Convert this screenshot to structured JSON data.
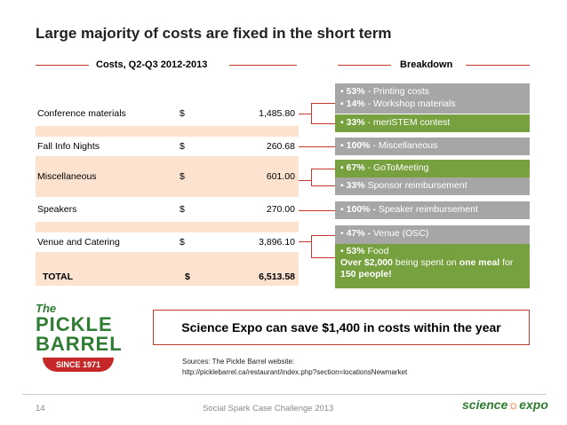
{
  "title": "Large majority of costs are fixed in the short term",
  "costs_header": "Costs, Q2-Q3 2012-2013",
  "breakdown_header": "Breakdown",
  "table": [
    {
      "item": "Conference materials",
      "currency": "$",
      "amount": "1,485.80"
    },
    {
      "item": "Fall Info Nights",
      "currency": "$",
      "amount": "260.68"
    },
    {
      "item": "Miscellaneous",
      "currency": "$",
      "amount": "601.00"
    },
    {
      "item": "Speakers",
      "currency": "$",
      "amount": "270.00"
    },
    {
      "item": "Venue and Catering",
      "currency": "$",
      "amount": "3,896.10"
    },
    {
      "item": "TOTAL",
      "currency": "$",
      "amount": "6,513.58"
    }
  ],
  "breakdown": {
    "b1": {
      "pct": "53%",
      "text": " - Printing costs"
    },
    "b2": {
      "pct": "14%",
      "text": " - Workshop materials"
    },
    "b3": {
      "pct": "33%",
      "text": " - meriSTEM contest"
    },
    "b4": {
      "pct": "100%",
      "text": " - Miscellaneous"
    },
    "b5": {
      "pct": "67%",
      "text": " - GoToMeeting"
    },
    "b6": {
      "pct": "33%",
      "text": " Sponsor reimbursement"
    },
    "b7": {
      "pct": "100% -",
      "text": " Speaker reimbursement"
    },
    "b8": {
      "pct": "47% -",
      "text": " Venue (OSC)"
    },
    "b9": {
      "pct": "53%",
      "text": " Food"
    },
    "b10": {
      "a": "Over $2,000",
      "b": " being spent on ",
      "c": "one meal",
      "d": " for ",
      "e": "150 people!"
    }
  },
  "logo": {
    "line1": "The",
    "line2": "PICKLE",
    "line3": "BARREL",
    "line4": "SINCE 1971"
  },
  "savings": "Science Expo can save $1,400 in costs within the year",
  "sources": {
    "line1": "Sources: The Pickle Barrel website:",
    "line2": "http://picklebarrel.ca/restaurant/index.php?section=locationsNewmarket"
  },
  "footer": {
    "page": "14",
    "center": "Social Spark Case Challenge 2013",
    "brand_left": "science",
    "brand_right": "expo"
  },
  "colors": {
    "accent_red": "#c0392b",
    "green": "#77a03e",
    "gray": "#a6a6a6",
    "peach": "#fbe3d0"
  }
}
